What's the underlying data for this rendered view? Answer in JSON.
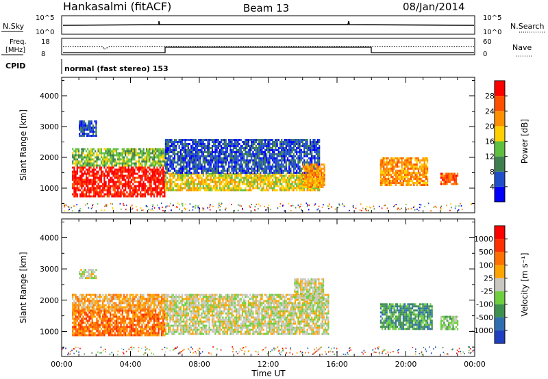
{
  "header": {
    "station": "Hankasalmi (fitACF)",
    "beam": "Beam 13",
    "date": "08/Jan/2014"
  },
  "top_panels": {
    "nsky_label": "N.Sky",
    "nsky_ticks": [
      "10^5",
      "10^0"
    ],
    "nsearch_label": "N.Search",
    "nsearch_ticks": [
      "10^5",
      "10^0"
    ],
    "freq_label_1": "Freq.",
    "freq_label_2": "[MHz]",
    "freq_ticks": [
      "18",
      "8"
    ],
    "nave_label": "Nave",
    "nave_ticks": [
      "60",
      "0"
    ],
    "cpid_label": "CPID",
    "cpid_text": "normal (fast stereo) 153"
  },
  "chart_data": [
    {
      "type": "heatmap",
      "name": "power",
      "ylabel": "Slant Range [km]",
      "xlabel": "Time UT",
      "x_ticks": [
        "00:00",
        "04:00",
        "08:00",
        "12:00",
        "16:00",
        "20:00",
        "00:00"
      ],
      "y_ticks": [
        1000,
        2000,
        3000,
        4000
      ],
      "ylim": [
        200,
        4600
      ],
      "xlim_hours": [
        0,
        24
      ],
      "colorbar": {
        "label": "Power [dB]",
        "ticks": [
          "4",
          "8",
          "12",
          "16",
          "20",
          "24",
          "28"
        ],
        "colors": [
          "#0000ff",
          "#1f4fc8",
          "#3f7f4f",
          "#5fbf3f",
          "#ffd000",
          "#ff9000",
          "#ff5000",
          "#ff0000"
        ]
      },
      "regions": [
        {
          "t0": 0.6,
          "t1": 6.0,
          "r0": 750,
          "r1": 1700,
          "level": 7
        },
        {
          "t0": 0.6,
          "t1": 6.0,
          "r0": 1700,
          "r1": 2300,
          "level": 3
        },
        {
          "t0": 1.0,
          "t1": 2.0,
          "r0": 2700,
          "r1": 3200,
          "level": 1
        },
        {
          "t0": 6.0,
          "t1": 15.0,
          "r0": 900,
          "r1": 1500,
          "level": 4
        },
        {
          "t0": 6.0,
          "t1": 15.0,
          "r0": 1500,
          "r1": 2600,
          "level": 1
        },
        {
          "t0": 14.0,
          "t1": 15.3,
          "r0": 1000,
          "r1": 1800,
          "level": 5
        },
        {
          "t0": 18.5,
          "t1": 21.3,
          "r0": 1100,
          "r1": 2000,
          "level": 5
        },
        {
          "t0": 22.0,
          "t1": 23.0,
          "r0": 1100,
          "r1": 1500,
          "level": 6
        }
      ]
    },
    {
      "type": "heatmap",
      "name": "velocity",
      "ylabel": "Slant Range [km]",
      "xlabel": "Time UT",
      "x_ticks": [
        "00:00",
        "04:00",
        "08:00",
        "12:00",
        "16:00",
        "20:00",
        "00:00"
      ],
      "y_ticks": [
        1000,
        2000,
        3000,
        4000
      ],
      "ylim": [
        200,
        4600
      ],
      "xlim_hours": [
        0,
        24
      ],
      "colorbar": {
        "label": "Velocity [m s⁻¹]",
        "ticks": [
          "1000",
          "500",
          "100",
          "25",
          "-25",
          "-100",
          "-500",
          "-1000"
        ],
        "colors": [
          "#1f3fbf",
          "#2f6faf",
          "#3f8f4f",
          "#6fcf3f",
          "#c8c8c0",
          "#ffa500",
          "#ff7000",
          "#ff3000",
          "#ff0000"
        ]
      },
      "regions": [
        {
          "t0": 0.6,
          "t1": 6.0,
          "r0": 900,
          "r1": 1700,
          "level": 6
        },
        {
          "t0": 0.6,
          "t1": 6.0,
          "r0": 1700,
          "r1": 2200,
          "level": 5
        },
        {
          "t0": 1.0,
          "t1": 2.0,
          "r0": 2700,
          "r1": 3000,
          "level": 4
        },
        {
          "t0": 6.0,
          "t1": 15.5,
          "r0": 900,
          "r1": 2200,
          "level": 4
        },
        {
          "t0": 13.5,
          "t1": 15.2,
          "r0": 2000,
          "r1": 2700,
          "level": 4
        },
        {
          "t0": 18.5,
          "t1": 21.5,
          "r0": 1100,
          "r1": 1900,
          "level": 2
        },
        {
          "t0": 22.0,
          "t1": 23.0,
          "r0": 1100,
          "r1": 1500,
          "level": 3
        }
      ]
    }
  ]
}
